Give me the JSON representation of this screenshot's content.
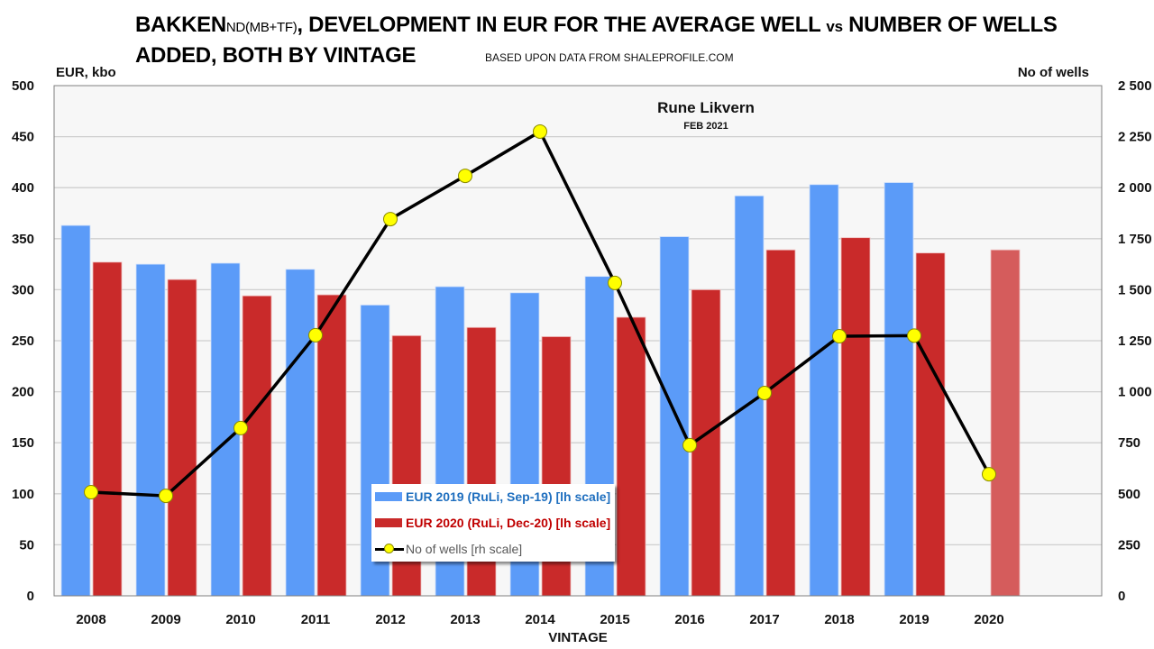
{
  "header": {
    "title_main": "BAKKEN",
    "title_sub": "ND(MB+TF)",
    "title_rest_1": ", DEVELOPMENT IN EUR FOR THE AVERAGE WELL ",
    "title_vs": "vs",
    "title_rest_2": " NUMBER OF WELLS",
    "title_line2": "ADDED, BOTH BY VINTAGE",
    "source": "BASED UPON DATA FROM SHALEPROFILE.COM"
  },
  "watermark": {
    "author": "Rune Likvern",
    "date": "FEB 2021"
  },
  "colors": {
    "eur2019": "#5b9bf8",
    "eur2020": "#c92a2a",
    "eur2020_light": "#d55c5c",
    "line": "#000000",
    "marker": "#ffff00",
    "plot_bg": "#f7f7f7",
    "grid": "#cfcfcf",
    "legend_2019_text": "#1f6fbf",
    "legend_2020_text": "#c00000",
    "legend_wells_text": "#595959"
  },
  "chart_data": {
    "type": "bar",
    "title": "BAKKEN ND(MB+TF), DEVELOPMENT IN EUR FOR THE AVERAGE WELL vs NUMBER OF WELLS ADDED, BOTH BY VINTAGE",
    "subtitle": "BASED UPON DATA FROM SHALEPROFILE.COM",
    "xlabel": "VINTAGE",
    "ylabel": "EUR, kbo",
    "y2label": "No of wells",
    "categories": [
      "2008",
      "2009",
      "2010",
      "2011",
      "2012",
      "2013",
      "2014",
      "2015",
      "2016",
      "2017",
      "2018",
      "2019",
      "2020"
    ],
    "ylim": [
      0,
      500
    ],
    "y_ticks": [
      "0",
      "50",
      "100",
      "150",
      "200",
      "250",
      "300",
      "350",
      "400",
      "450",
      "500"
    ],
    "y_tick_values": [
      0,
      50,
      100,
      150,
      200,
      250,
      300,
      350,
      400,
      450,
      500
    ],
    "y2lim": [
      0,
      2500
    ],
    "y2_ticks": [
      "0",
      "250",
      "500",
      "750",
      "1 000",
      "1 250",
      "1 500",
      "1 750",
      "2 000",
      "2 250",
      "2 500"
    ],
    "y2_tick_values": [
      0,
      250,
      500,
      750,
      1000,
      1250,
      1500,
      1750,
      2000,
      2250,
      2500
    ],
    "grid": true,
    "legend_position": "bottom-center",
    "series": [
      {
        "name": "EUR 2019 (RuLi, Sep-19) [lh scale]",
        "type": "bar",
        "axis": "left",
        "values": [
          363,
          325,
          326,
          320,
          285,
          303,
          297,
          313,
          352,
          392,
          403,
          405,
          null
        ]
      },
      {
        "name": "EUR 2020 (RuLi, Dec-20) [lh scale]",
        "type": "bar",
        "axis": "left",
        "values": [
          327,
          310,
          294,
          295,
          255,
          263,
          254,
          273,
          300,
          339,
          351,
          336,
          339
        ],
        "note_last_value_lighter": true
      },
      {
        "name": "No of wells [rh scale]",
        "type": "line",
        "axis": "right",
        "values": [
          508,
          490,
          822,
          1277,
          1846,
          2058,
          2275,
          1533,
          738,
          994,
          1272,
          1275,
          596
        ]
      }
    ]
  }
}
